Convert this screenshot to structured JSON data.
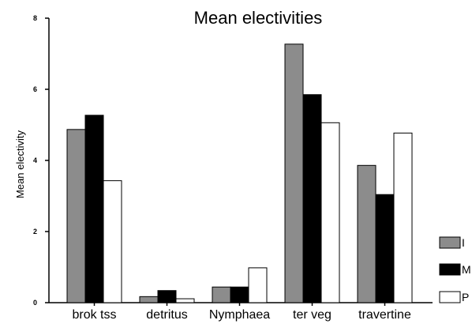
{
  "chart_data": {
    "type": "bar",
    "title": "Mean electivities",
    "xlabel": "",
    "ylabel": "Mean electivity",
    "categories": [
      "brok tss",
      "detritus",
      "Nymphaea",
      "ter veg",
      "travertine"
    ],
    "series": [
      {
        "name": "I",
        "color": "#8c8c8c",
        "values": [
          4.87,
          0.17,
          0.44,
          7.27,
          3.86
        ]
      },
      {
        "name": "M",
        "color": "#000000",
        "values": [
          5.27,
          0.34,
          0.44,
          5.85,
          3.04
        ]
      },
      {
        "name": "P",
        "color": "#ffffff",
        "values": [
          3.43,
          0.11,
          0.98,
          5.06,
          4.77
        ]
      }
    ],
    "ylim": [
      0,
      8
    ],
    "yticks": [
      "0",
      "2",
      "4",
      "6",
      "8"
    ],
    "grid": false,
    "legend_position": "bottom-right"
  }
}
